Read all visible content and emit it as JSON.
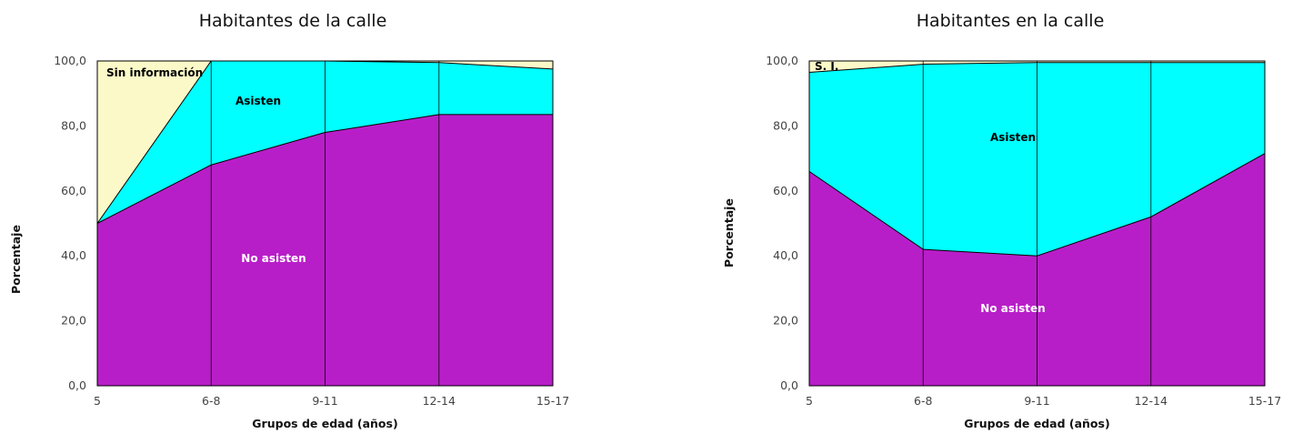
{
  "colors": {
    "no_asisten": "#b81ec8",
    "asisten": "#00ffff",
    "sin_informacion": "#fbf9c8",
    "outline": "#000000"
  },
  "chart_data": [
    {
      "type": "area",
      "stacked": true,
      "title": "Habitantes de la calle",
      "xlabel": "Grupos de edad (años)",
      "ylabel": "Porcentaje",
      "categories": [
        "5",
        "6-8",
        "9-11",
        "12-14",
        "15-17"
      ],
      "ylim": [
        0,
        100
      ],
      "yticks": [
        "0,0",
        "20,0",
        "40,0",
        "60,0",
        "80,0",
        "100,0"
      ],
      "grid": false,
      "series": [
        {
          "name": "No asisten",
          "values": [
            50.0,
            68.0,
            78.0,
            83.5,
            83.5
          ]
        },
        {
          "name": "Asisten",
          "values": [
            0.0,
            32.0,
            22.0,
            16.0,
            14.0
          ]
        },
        {
          "name": "Sin información",
          "values": [
            50.0,
            0.0,
            0.0,
            0.5,
            2.5
          ]
        }
      ],
      "area_labels": [
        "No asisten",
        "Asisten",
        "Sin información"
      ]
    },
    {
      "type": "area",
      "stacked": true,
      "title": "Habitantes en la calle",
      "xlabel": "Grupos de edad (años)",
      "ylabel": "Porcentaje",
      "categories": [
        "5",
        "6-8",
        "9-11",
        "12-14",
        "15-17"
      ],
      "ylim": [
        0,
        100
      ],
      "yticks": [
        "0,0",
        "20,0",
        "40,0",
        "60,0",
        "80,0",
        "100,0"
      ],
      "grid": false,
      "series": [
        {
          "name": "No asisten",
          "values": [
            66.0,
            42.0,
            40.0,
            52.0,
            71.5
          ]
        },
        {
          "name": "Asisten",
          "values": [
            30.5,
            57.0,
            59.5,
            47.5,
            28.0
          ]
        },
        {
          "name": "S. I.",
          "values": [
            3.5,
            1.0,
            0.5,
            0.5,
            0.5
          ]
        }
      ],
      "area_labels": [
        "No asisten",
        "Asisten",
        "S. I."
      ]
    }
  ]
}
